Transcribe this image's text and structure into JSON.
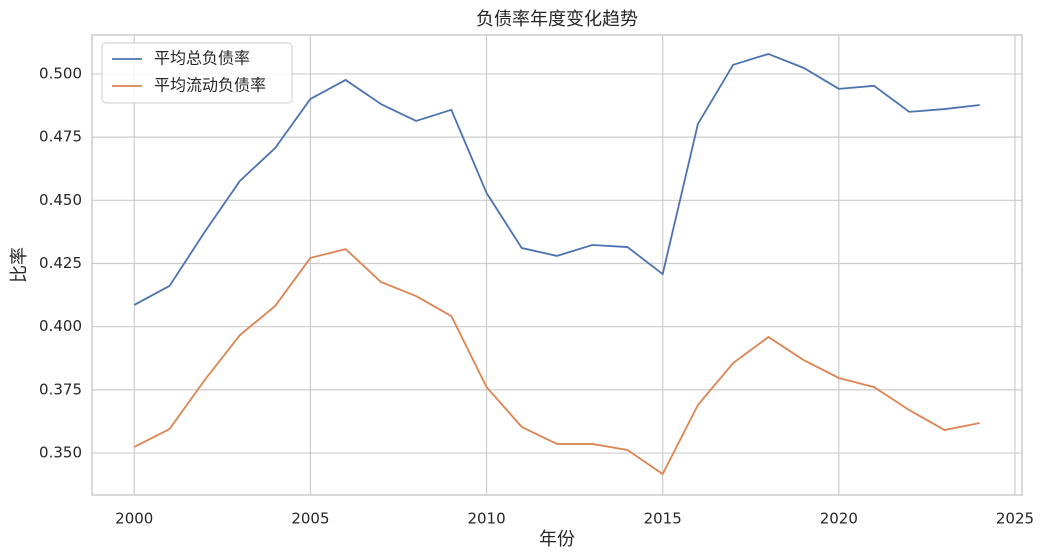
{
  "chart_data": {
    "type": "line",
    "title": "负债率年度变化趋势",
    "x_label": "年份",
    "y_label": "比率",
    "x": [
      2000,
      2001,
      2002,
      2003,
      2004,
      2005,
      2006,
      2007,
      2008,
      2009,
      2010,
      2011,
      2012,
      2013,
      2014,
      2015,
      2016,
      2017,
      2018,
      2019,
      2020,
      2021,
      2022,
      2023,
      2024
    ],
    "series": [
      {
        "name": "平均总负债率",
        "color": "#4c72b0",
        "values": [
          0.4086,
          0.4161,
          0.4375,
          0.4577,
          0.4707,
          0.4901,
          0.4976,
          0.4881,
          0.4814,
          0.4858,
          0.4529,
          0.4311,
          0.428,
          0.4323,
          0.4315,
          0.4208,
          0.4802,
          0.5036,
          0.5079,
          0.5024,
          0.4941,
          0.4953,
          0.485,
          0.4861,
          0.4877
        ]
      },
      {
        "name": "平均流动负债率",
        "color": "#dd8452",
        "values": [
          0.3524,
          0.3595,
          0.3789,
          0.3967,
          0.4082,
          0.4272,
          0.4307,
          0.4177,
          0.4121,
          0.4042,
          0.3761,
          0.3603,
          0.3536,
          0.3536,
          0.3512,
          0.3417,
          0.369,
          0.3856,
          0.3959,
          0.3868,
          0.3797,
          0.3761,
          0.367,
          0.3591,
          0.3619
        ]
      }
    ],
    "xlim": [
      1998.8,
      2025.2
    ],
    "ylim": [
      0.3334,
      0.5154
    ],
    "xticks": [
      2000,
      2005,
      2010,
      2015,
      2020,
      2025
    ],
    "yticks": [
      {
        "value": 0.35,
        "label": "0.350"
      },
      {
        "value": 0.375,
        "label": "0.375"
      },
      {
        "value": 0.4,
        "label": "0.400"
      },
      {
        "value": 0.425,
        "label": "0.425"
      },
      {
        "value": 0.45,
        "label": "0.450"
      },
      {
        "value": 0.475,
        "label": "0.475"
      },
      {
        "value": 0.5,
        "label": "0.500"
      }
    ],
    "grid": true,
    "legend": "upper-left"
  }
}
